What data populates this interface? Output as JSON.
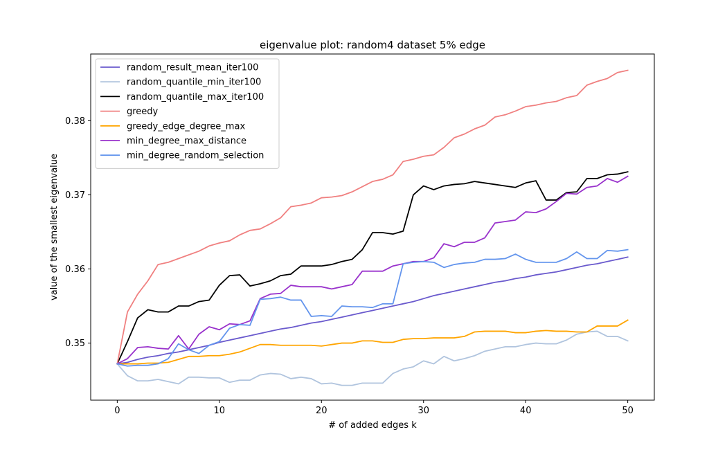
{
  "chart_data": {
    "type": "line",
    "title": "eigenvalue plot: random4 dataset 5% edge",
    "xlabel": "# of added edges k",
    "ylabel": "value of the smallest eigenvalue",
    "xlim": [
      -2.6,
      52.6
    ],
    "ylim": [
      0.3423,
      0.389
    ],
    "xticks": [
      0,
      10,
      20,
      30,
      40,
      50
    ],
    "yticks": [
      0.35,
      0.36,
      0.37,
      0.38
    ],
    "ytick_labels": [
      "0.35",
      "0.36",
      "0.37",
      "0.38"
    ],
    "legend_position": "top-left",
    "grid": false,
    "x": [
      0,
      1,
      2,
      3,
      4,
      5,
      6,
      7,
      8,
      9,
      10,
      11,
      12,
      13,
      14,
      15,
      16,
      17,
      18,
      19,
      20,
      21,
      22,
      23,
      24,
      25,
      26,
      27,
      28,
      29,
      30,
      31,
      32,
      33,
      34,
      35,
      36,
      37,
      38,
      39,
      40,
      41,
      42,
      43,
      44,
      45,
      46,
      47,
      48,
      49,
      50
    ],
    "series": [
      {
        "name": "random_result_mean_iter100",
        "color": "#6a5acd",
        "values": [
          0.3472,
          0.3474,
          0.3478,
          0.3481,
          0.3483,
          0.3486,
          0.3488,
          0.3491,
          0.3494,
          0.3497,
          0.3501,
          0.3504,
          0.3507,
          0.351,
          0.3513,
          0.3516,
          0.3519,
          0.3521,
          0.3524,
          0.3527,
          0.3529,
          0.3532,
          0.3535,
          0.3538,
          0.3541,
          0.3544,
          0.3547,
          0.355,
          0.3553,
          0.3556,
          0.356,
          0.3564,
          0.3567,
          0.357,
          0.3573,
          0.3576,
          0.3579,
          0.3582,
          0.3584,
          0.3587,
          0.3589,
          0.3592,
          0.3594,
          0.3596,
          0.3599,
          0.3602,
          0.3605,
          0.3607,
          0.361,
          0.3613,
          0.3616
        ]
      },
      {
        "name": "random_quantile_min_iter100",
        "color": "#b0c4de",
        "values": [
          0.3472,
          0.3456,
          0.3449,
          0.3449,
          0.3451,
          0.3448,
          0.3445,
          0.3454,
          0.3454,
          0.3453,
          0.3453,
          0.3447,
          0.345,
          0.345,
          0.3457,
          0.3459,
          0.3458,
          0.3452,
          0.3454,
          0.3452,
          0.3445,
          0.3446,
          0.3443,
          0.3443,
          0.3446,
          0.3446,
          0.3446,
          0.3459,
          0.3465,
          0.3468,
          0.3476,
          0.3472,
          0.3482,
          0.3476,
          0.3479,
          0.3483,
          0.3489,
          0.3492,
          0.3495,
          0.3495,
          0.3498,
          0.35,
          0.3499,
          0.3499,
          0.3504,
          0.3512,
          0.3515,
          0.3516,
          0.3509,
          0.3509,
          0.3503
        ]
      },
      {
        "name": "random_quantile_max_iter100",
        "color": "#000000",
        "values": [
          0.3472,
          0.3502,
          0.3534,
          0.3545,
          0.3542,
          0.3542,
          0.355,
          0.355,
          0.3556,
          0.3558,
          0.3578,
          0.3591,
          0.3592,
          0.3577,
          0.358,
          0.3584,
          0.3591,
          0.3593,
          0.3604,
          0.3604,
          0.3604,
          0.3606,
          0.361,
          0.3613,
          0.3626,
          0.3649,
          0.3649,
          0.3647,
          0.3651,
          0.37,
          0.3712,
          0.3707,
          0.3712,
          0.3714,
          0.3715,
          0.3718,
          0.3716,
          0.3714,
          0.3712,
          0.371,
          0.3716,
          0.3719,
          0.3693,
          0.3693,
          0.3703,
          0.3704,
          0.3722,
          0.3722,
          0.3727,
          0.3728,
          0.3731
        ]
      },
      {
        "name": "greedy",
        "color": "#f08080",
        "values": [
          0.3472,
          0.3542,
          0.3566,
          0.3584,
          0.3606,
          0.3609,
          0.3614,
          0.3619,
          0.3624,
          0.3631,
          0.3635,
          0.3638,
          0.3646,
          0.3652,
          0.3654,
          0.3661,
          0.3669,
          0.3684,
          0.3686,
          0.3689,
          0.3696,
          0.3697,
          0.3699,
          0.3704,
          0.3711,
          0.3718,
          0.3721,
          0.3727,
          0.3745,
          0.3748,
          0.3752,
          0.3754,
          0.3764,
          0.3777,
          0.3782,
          0.3789,
          0.3794,
          0.3805,
          0.3808,
          0.3813,
          0.3819,
          0.3821,
          0.3824,
          0.3826,
          0.3831,
          0.3834,
          0.3848,
          0.3853,
          0.3857,
          0.3865,
          0.3868
        ]
      },
      {
        "name": "greedy_edge_degree_max",
        "color": "#ffa500",
        "values": [
          0.3472,
          0.3472,
          0.3472,
          0.3473,
          0.3473,
          0.3474,
          0.3478,
          0.3482,
          0.3482,
          0.3483,
          0.3483,
          0.3485,
          0.3488,
          0.3493,
          0.3498,
          0.3498,
          0.3497,
          0.3497,
          0.3497,
          0.3497,
          0.3496,
          0.3498,
          0.35,
          0.35,
          0.3503,
          0.3503,
          0.3501,
          0.3501,
          0.3505,
          0.3506,
          0.3506,
          0.3507,
          0.3507,
          0.3507,
          0.3509,
          0.3515,
          0.3516,
          0.3516,
          0.3516,
          0.3514,
          0.3514,
          0.3516,
          0.3517,
          0.3516,
          0.3516,
          0.3515,
          0.3515,
          0.3523,
          0.3523,
          0.3523,
          0.3531
        ]
      },
      {
        "name": "min_degree_max_distance",
        "color": "#9932cc",
        "values": [
          0.3472,
          0.3479,
          0.3494,
          0.3495,
          0.3493,
          0.3492,
          0.351,
          0.3492,
          0.3512,
          0.3522,
          0.3518,
          0.3526,
          0.3525,
          0.353,
          0.356,
          0.3566,
          0.3567,
          0.3578,
          0.3576,
          0.3576,
          0.3576,
          0.3573,
          0.3576,
          0.3579,
          0.3597,
          0.3597,
          0.3597,
          0.3604,
          0.3607,
          0.361,
          0.361,
          0.3615,
          0.3634,
          0.363,
          0.3636,
          0.3636,
          0.3642,
          0.3662,
          0.3664,
          0.3666,
          0.3677,
          0.3676,
          0.3681,
          0.3691,
          0.3702,
          0.3701,
          0.371,
          0.3712,
          0.3722,
          0.3717,
          0.3725
        ]
      },
      {
        "name": "min_degree_random_selection",
        "color": "#6495ed",
        "values": [
          0.3472,
          0.3469,
          0.347,
          0.347,
          0.3472,
          0.3479,
          0.3499,
          0.3491,
          0.3486,
          0.3497,
          0.3502,
          0.352,
          0.3525,
          0.3524,
          0.3559,
          0.356,
          0.3562,
          0.3558,
          0.3558,
          0.3536,
          0.3537,
          0.3536,
          0.355,
          0.3549,
          0.3549,
          0.3548,
          0.3553,
          0.3553,
          0.3607,
          0.3609,
          0.361,
          0.3609,
          0.3602,
          0.3606,
          0.3608,
          0.3609,
          0.3613,
          0.3613,
          0.3614,
          0.362,
          0.3613,
          0.3609,
          0.3609,
          0.3609,
          0.3614,
          0.3623,
          0.3614,
          0.3614,
          0.3625,
          0.3624,
          0.3626
        ]
      }
    ]
  }
}
